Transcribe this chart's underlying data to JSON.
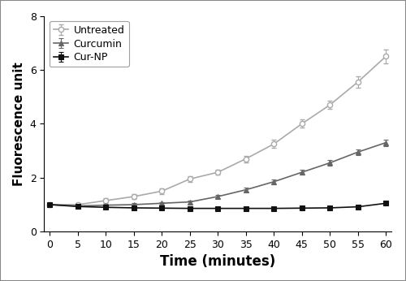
{
  "time": [
    0,
    5,
    10,
    15,
    20,
    25,
    30,
    35,
    40,
    45,
    50,
    55,
    60
  ],
  "untreated_y": [
    1.0,
    1.0,
    1.15,
    1.3,
    1.5,
    1.95,
    2.2,
    2.7,
    3.25,
    4.0,
    4.7,
    5.55,
    6.5
  ],
  "untreated_err": [
    0.05,
    0.05,
    0.08,
    0.08,
    0.1,
    0.1,
    0.1,
    0.12,
    0.15,
    0.15,
    0.15,
    0.2,
    0.25
  ],
  "curcumin_y": [
    1.0,
    0.95,
    0.98,
    1.0,
    1.05,
    1.1,
    1.3,
    1.55,
    1.85,
    2.2,
    2.55,
    2.95,
    3.3
  ],
  "curcumin_err": [
    0.05,
    0.05,
    0.05,
    0.05,
    0.05,
    0.06,
    0.07,
    0.08,
    0.09,
    0.1,
    0.1,
    0.1,
    0.12
  ],
  "curnp_y": [
    1.0,
    0.93,
    0.9,
    0.88,
    0.87,
    0.86,
    0.86,
    0.86,
    0.86,
    0.87,
    0.88,
    0.92,
    1.05
  ],
  "curnp_err": [
    0.03,
    0.03,
    0.03,
    0.03,
    0.03,
    0.03,
    0.03,
    0.03,
    0.03,
    0.03,
    0.03,
    0.04,
    0.05
  ],
  "untreated_color": "#aaaaaa",
  "curcumin_color": "#666666",
  "curnp_color": "#111111",
  "xlabel": "Time (minutes)",
  "ylabel": "Fluorescence unit",
  "ylim": [
    0,
    8
  ],
  "xlim": [
    -1,
    61
  ],
  "yticks": [
    0,
    2,
    4,
    6,
    8
  ],
  "xticks": [
    0,
    5,
    10,
    15,
    20,
    25,
    30,
    35,
    40,
    45,
    50,
    55,
    60
  ],
  "legend_labels": [
    "Untreated",
    "Curcumin",
    "Cur-NP"
  ],
  "legend_loc": "upper left",
  "bg_color": "#ffffff",
  "linewidth": 1.2,
  "markersize": 4.5,
  "xlabel_fontsize": 12,
  "ylabel_fontsize": 11,
  "tick_fontsize": 9
}
